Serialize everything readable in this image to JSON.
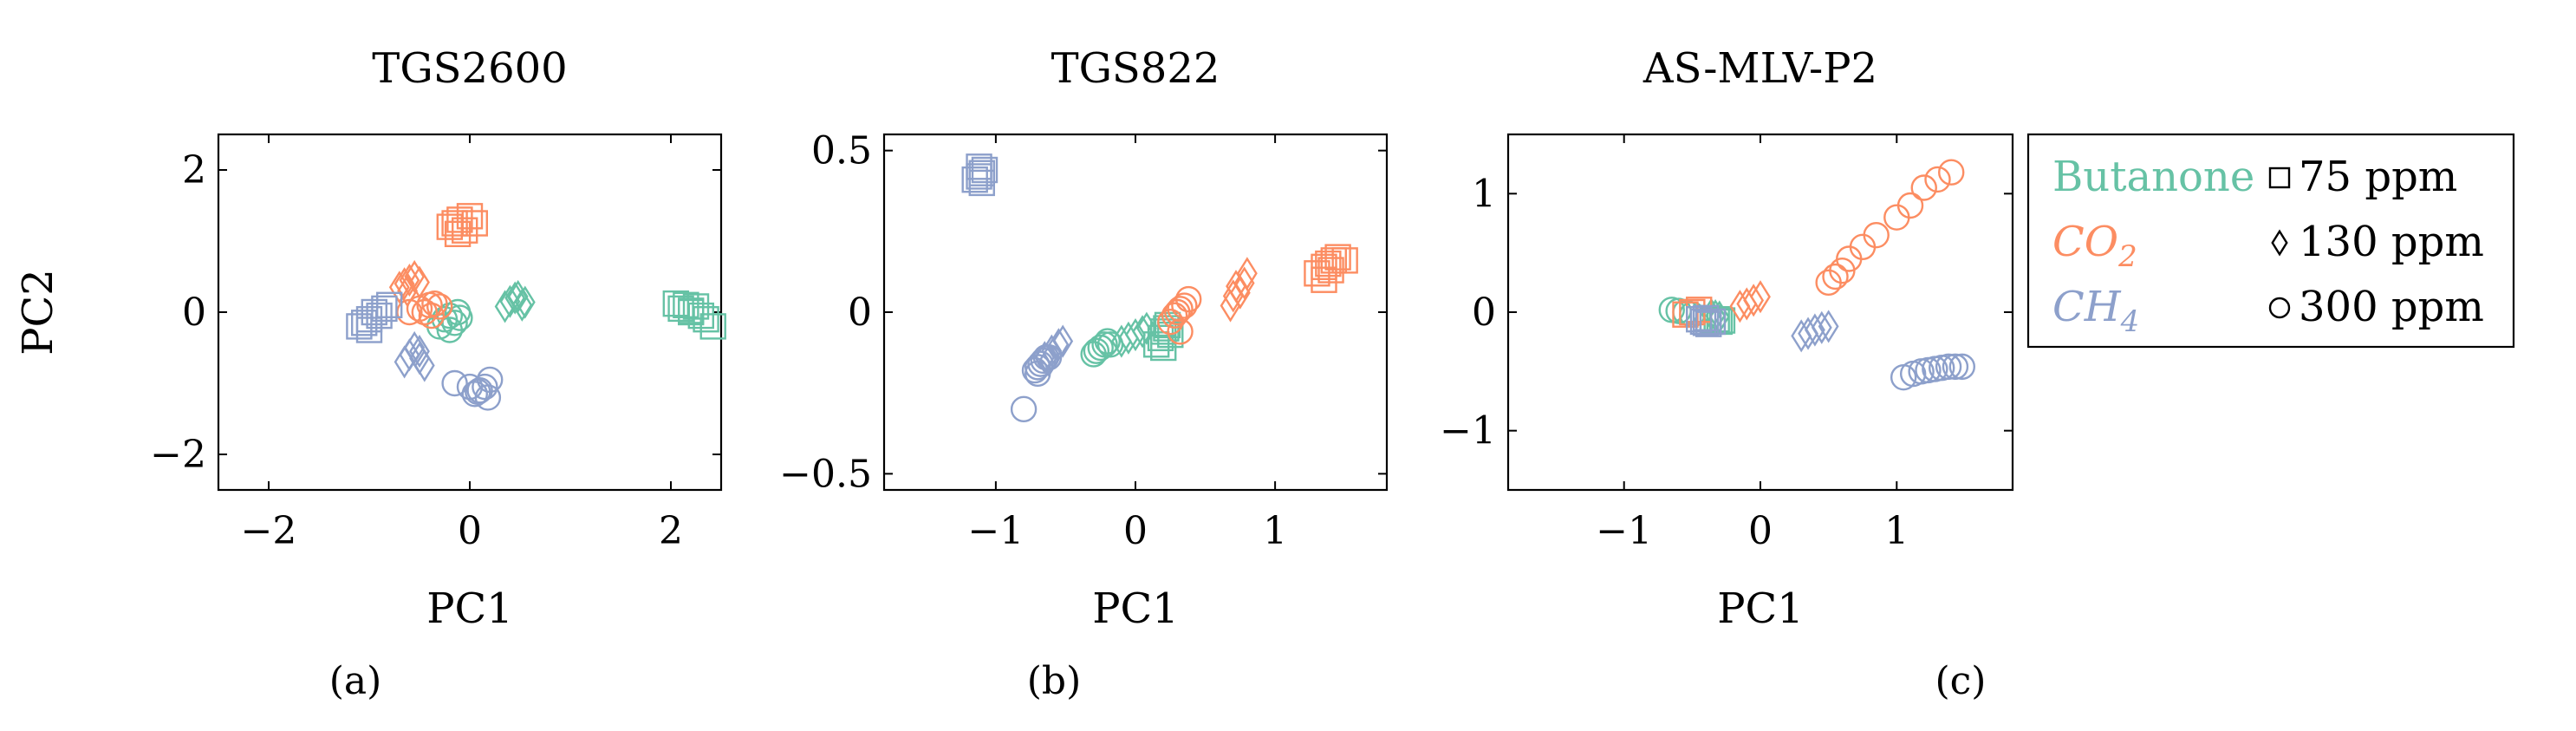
{
  "colors": {
    "butanone": "#66c2a5",
    "co2": "#fc8d62",
    "ch4": "#8da0cb"
  },
  "legend": {
    "gases": [
      {
        "key": "butanone",
        "label": "Butanone"
      },
      {
        "key": "co2",
        "label": "CO",
        "sub": "2"
      },
      {
        "key": "ch4",
        "label": "CH",
        "sub": "4"
      }
    ],
    "concentrations": [
      {
        "marker": "square",
        "label": "75 ppm"
      },
      {
        "marker": "diamond",
        "label": "130 ppm"
      },
      {
        "marker": "circle",
        "label": "300 ppm"
      }
    ]
  },
  "chart_data": [
    {
      "type": "scatter",
      "panel_label": "(a)",
      "title": "TGS2600",
      "xlabel": "PC1",
      "ylabel": "PC2",
      "xlim": [
        -2.5,
        2.5
      ],
      "ylim": [
        -2.5,
        2.5
      ],
      "xticks": [
        -2,
        0,
        2
      ],
      "xtick_labels": [
        "−2",
        "0",
        "2"
      ],
      "yticks": [
        -2,
        0,
        2
      ],
      "ytick_labels": [
        "−2",
        "0",
        "2"
      ],
      "series": [
        {
          "gas": "butanone",
          "marker": "square",
          "points": [
            [
              2.05,
              0.12
            ],
            [
              2.1,
              0.05
            ],
            [
              2.15,
              0.1
            ],
            [
              2.2,
              0.02
            ],
            [
              2.25,
              0.08
            ],
            [
              2.3,
              -0.05
            ],
            [
              2.35,
              -0.1
            ],
            [
              2.42,
              -0.2
            ],
            [
              2.2,
              0.0
            ]
          ]
        },
        {
          "gas": "butanone",
          "marker": "diamond",
          "points": [
            [
              0.35,
              0.08
            ],
            [
              0.4,
              0.15
            ],
            [
              0.45,
              0.2
            ],
            [
              0.48,
              0.22
            ],
            [
              0.52,
              0.1
            ],
            [
              0.55,
              0.14
            ]
          ]
        },
        {
          "gas": "butanone",
          "marker": "circle",
          "points": [
            [
              -0.3,
              -0.2
            ],
            [
              -0.25,
              -0.1
            ],
            [
              -0.2,
              -0.05
            ],
            [
              -0.15,
              -0.15
            ],
            [
              -0.12,
              0.0
            ],
            [
              -0.1,
              -0.08
            ],
            [
              -0.2,
              -0.25
            ]
          ]
        },
        {
          "gas": "co2",
          "marker": "square",
          "points": [
            [
              -0.2,
              1.2
            ],
            [
              -0.15,
              1.25
            ],
            [
              -0.1,
              1.3
            ],
            [
              -0.05,
              1.15
            ],
            [
              0.0,
              1.35
            ],
            [
              0.05,
              1.25
            ],
            [
              -0.12,
              1.1
            ]
          ]
        },
        {
          "gas": "co2",
          "marker": "diamond",
          "points": [
            [
              -0.7,
              0.35
            ],
            [
              -0.65,
              0.4
            ],
            [
              -0.6,
              0.45
            ],
            [
              -0.55,
              0.5
            ],
            [
              -0.5,
              0.42
            ],
            [
              -0.62,
              0.3
            ]
          ]
        },
        {
          "gas": "co2",
          "marker": "circle",
          "points": [
            [
              -0.6,
              0.0
            ],
            [
              -0.5,
              0.05
            ],
            [
              -0.45,
              0.0
            ],
            [
              -0.4,
              0.1
            ],
            [
              -0.35,
              0.12
            ],
            [
              -0.3,
              0.08
            ],
            [
              -0.38,
              -0.05
            ]
          ]
        },
        {
          "gas": "ch4",
          "marker": "square",
          "points": [
            [
              -1.1,
              -0.2
            ],
            [
              -1.05,
              -0.15
            ],
            [
              -1.0,
              -0.1
            ],
            [
              -0.95,
              0.0
            ],
            [
              -0.9,
              -0.05
            ],
            [
              -0.85,
              0.05
            ],
            [
              -0.8,
              0.1
            ],
            [
              -1.0,
              -0.25
            ]
          ]
        },
        {
          "gas": "ch4",
          "marker": "diamond",
          "points": [
            [
              -0.65,
              -0.7
            ],
            [
              -0.6,
              -0.6
            ],
            [
              -0.55,
              -0.5
            ],
            [
              -0.5,
              -0.65
            ],
            [
              -0.45,
              -0.75
            ],
            [
              -0.5,
              -0.55
            ]
          ]
        },
        {
          "gas": "ch4",
          "marker": "circle",
          "points": [
            [
              -0.15,
              -1.0
            ],
            [
              0.0,
              -1.05
            ],
            [
              0.05,
              -1.15
            ],
            [
              0.1,
              -1.1
            ],
            [
              0.15,
              -1.05
            ],
            [
              0.2,
              -0.95
            ],
            [
              0.18,
              -1.2
            ],
            [
              0.08,
              -1.12
            ]
          ]
        }
      ]
    },
    {
      "type": "scatter",
      "panel_label": "(b)",
      "title": "TGS822",
      "xlabel": "PC1",
      "ylabel": "",
      "xlim": [
        -1.8,
        1.8
      ],
      "ylim": [
        -0.55,
        0.55
      ],
      "xticks": [
        -1,
        0,
        1
      ],
      "xtick_labels": [
        "−1",
        "0",
        "1"
      ],
      "yticks": [
        -0.5,
        0,
        0.5
      ],
      "ytick_labels": [
        "−0.5",
        "0",
        "0.5"
      ],
      "series": [
        {
          "gas": "butanone",
          "marker": "square",
          "points": [
            [
              0.15,
              -0.1
            ],
            [
              0.18,
              -0.08
            ],
            [
              0.2,
              -0.06
            ],
            [
              0.22,
              -0.05
            ],
            [
              0.25,
              -0.07
            ],
            [
              0.2,
              -0.11
            ],
            [
              0.23,
              -0.04
            ]
          ]
        },
        {
          "gas": "butanone",
          "marker": "diamond",
          "points": [
            [
              -0.1,
              -0.09
            ],
            [
              -0.05,
              -0.08
            ],
            [
              0.0,
              -0.07
            ],
            [
              0.05,
              -0.06
            ],
            [
              0.08,
              -0.05
            ]
          ]
        },
        {
          "gas": "butanone",
          "marker": "circle",
          "points": [
            [
              -0.3,
              -0.13
            ],
            [
              -0.28,
              -0.12
            ],
            [
              -0.25,
              -0.11
            ],
            [
              -0.22,
              -0.1
            ],
            [
              -0.2,
              -0.09
            ],
            [
              -0.18,
              -0.1
            ]
          ]
        },
        {
          "gas": "co2",
          "marker": "square",
          "points": [
            [
              1.3,
              0.12
            ],
            [
              1.35,
              0.14
            ],
            [
              1.38,
              0.15
            ],
            [
              1.4,
              0.13
            ],
            [
              1.42,
              0.16
            ],
            [
              1.45,
              0.17
            ],
            [
              1.5,
              0.16
            ],
            [
              1.35,
              0.1
            ]
          ]
        },
        {
          "gas": "co2",
          "marker": "diamond",
          "points": [
            [
              0.68,
              0.02
            ],
            [
              0.7,
              0.05
            ],
            [
              0.72,
              0.08
            ],
            [
              0.75,
              0.06
            ],
            [
              0.78,
              0.09
            ],
            [
              0.8,
              0.12
            ]
          ]
        },
        {
          "gas": "co2",
          "marker": "circle",
          "points": [
            [
              0.25,
              -0.03
            ],
            [
              0.28,
              -0.01
            ],
            [
              0.3,
              0.0
            ],
            [
              0.32,
              0.01
            ],
            [
              0.35,
              0.02
            ],
            [
              0.38,
              0.04
            ],
            [
              0.32,
              -0.06
            ]
          ]
        },
        {
          "gas": "ch4",
          "marker": "square",
          "points": [
            [
              -1.15,
              0.41
            ],
            [
              -1.12,
              0.42
            ],
            [
              -1.1,
              0.43
            ],
            [
              -1.08,
              0.44
            ],
            [
              -1.12,
              0.45
            ],
            [
              -1.1,
              0.4
            ]
          ]
        },
        {
          "gas": "ch4",
          "marker": "diamond",
          "points": [
            [
              -0.65,
              -0.14
            ],
            [
              -0.6,
              -0.12
            ],
            [
              -0.55,
              -0.1
            ],
            [
              -0.52,
              -0.09
            ],
            [
              -0.62,
              -0.15
            ]
          ]
        },
        {
          "gas": "ch4",
          "marker": "circle",
          "points": [
            [
              -0.8,
              -0.3
            ],
            [
              -0.72,
              -0.18
            ],
            [
              -0.7,
              -0.17
            ],
            [
              -0.68,
              -0.16
            ],
            [
              -0.66,
              -0.15
            ],
            [
              -0.64,
              -0.14
            ],
            [
              -0.62,
              -0.14
            ],
            [
              -0.7,
              -0.19
            ]
          ]
        }
      ]
    },
    {
      "type": "scatter",
      "panel_label": "(c)",
      "title": "AS-MLV-P2",
      "xlabel": "PC1",
      "ylabel": "",
      "xlim": [
        -1.85,
        1.85
      ],
      "ylim": [
        -1.5,
        1.5
      ],
      "xticks": [
        -1,
        0,
        1
      ],
      "xtick_labels": [
        "−1",
        "0",
        "1"
      ],
      "yticks": [
        -1,
        0,
        1
      ],
      "ytick_labels": [
        "−1",
        "0",
        "1"
      ],
      "series": [
        {
          "gas": "butanone",
          "marker": "square",
          "points": [
            [
              -0.38,
              -0.05
            ],
            [
              -0.35,
              -0.07
            ],
            [
              -0.32,
              -0.06
            ],
            [
              -0.3,
              -0.08
            ],
            [
              -0.28,
              -0.07
            ]
          ]
        },
        {
          "gas": "butanone",
          "marker": "diamond",
          "points": [
            [
              -0.36,
              -0.02
            ],
            [
              -0.33,
              -0.03
            ],
            [
              -0.3,
              -0.04
            ]
          ]
        },
        {
          "gas": "butanone",
          "marker": "circle",
          "points": [
            [
              -0.65,
              0.02
            ],
            [
              -0.6,
              0.01
            ],
            [
              -0.55,
              0.0
            ],
            [
              -0.5,
              -0.02
            ]
          ]
        },
        {
          "gas": "co2",
          "marker": "square",
          "points": [
            [
              -0.55,
              -0.02
            ],
            [
              -0.5,
              0.0
            ],
            [
              -0.45,
              0.02
            ]
          ]
        },
        {
          "gas": "co2",
          "marker": "diamond",
          "points": [
            [
              -0.15,
              0.05
            ],
            [
              -0.1,
              0.07
            ],
            [
              -0.05,
              0.1
            ],
            [
              0.0,
              0.13
            ]
          ]
        },
        {
          "gas": "co2",
          "marker": "circle",
          "points": [
            [
              0.5,
              0.25
            ],
            [
              0.55,
              0.3
            ],
            [
              0.6,
              0.35
            ],
            [
              0.65,
              0.45
            ],
            [
              0.75,
              0.55
            ],
            [
              0.85,
              0.65
            ],
            [
              1.0,
              0.8
            ],
            [
              1.1,
              0.9
            ],
            [
              1.2,
              1.05
            ],
            [
              1.3,
              1.12
            ],
            [
              1.4,
              1.18
            ]
          ]
        },
        {
          "gas": "ch4",
          "marker": "square",
          "points": [
            [
              -0.45,
              -0.06
            ],
            [
              -0.42,
              -0.08
            ],
            [
              -0.4,
              -0.09
            ],
            [
              -0.38,
              -0.1
            ],
            [
              -0.35,
              -0.08
            ],
            [
              -0.4,
              -0.05
            ]
          ]
        },
        {
          "gas": "ch4",
          "marker": "diamond",
          "points": [
            [
              0.3,
              -0.2
            ],
            [
              0.35,
              -0.18
            ],
            [
              0.4,
              -0.15
            ],
            [
              0.45,
              -0.13
            ],
            [
              0.5,
              -0.12
            ]
          ]
        },
        {
          "gas": "ch4",
          "marker": "circle",
          "points": [
            [
              1.05,
              -0.55
            ],
            [
              1.12,
              -0.52
            ],
            [
              1.18,
              -0.5
            ],
            [
              1.23,
              -0.49
            ],
            [
              1.28,
              -0.48
            ],
            [
              1.33,
              -0.47
            ],
            [
              1.38,
              -0.46
            ],
            [
              1.43,
              -0.46
            ],
            [
              1.48,
              -0.46
            ]
          ]
        }
      ]
    }
  ]
}
